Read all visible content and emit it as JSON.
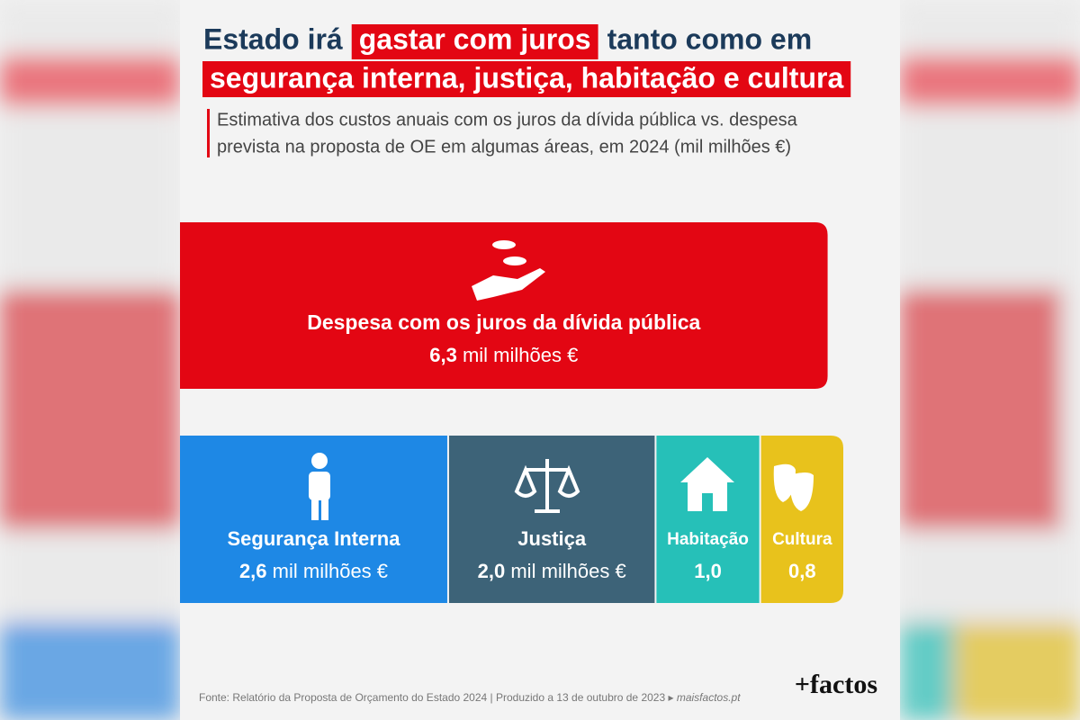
{
  "chart_data": {
    "type": "proportional-blocks",
    "title": [
      "Estado irá",
      "gastar com juros",
      "tanto como em",
      "segurança interna, justiça, habitação e cultura"
    ],
    "subtitle": [
      "Estimativa dos custos anuais com os juros da dívida pública vs. despesa",
      "prevista na proposta de OE em algumas áreas, em 2024 (mil milhões €)"
    ],
    "unit": "mil milhões €",
    "total": {
      "name": "Despesa com os juros da dívida pública",
      "value": 6.3,
      "value_label": "6,3",
      "color": "#e30613"
    },
    "series": [
      {
        "name": "Segurança Interna",
        "values": [
          2.6
        ],
        "value_labels": [
          "2,6"
        ],
        "color": "#1e88e5"
      },
      {
        "name": "Justiça",
        "values": [
          2.0
        ],
        "value_labels": [
          "2,0"
        ],
        "color": "#3d6378"
      },
      {
        "name": "Habitação",
        "values": [
          1.0
        ],
        "value_labels": [
          "1,0"
        ],
        "color": "#26c0b8"
      },
      {
        "name": "Cultura",
        "values": [
          0.8
        ],
        "value_labels": [
          "0,8"
        ],
        "color": "#e8c21c"
      }
    ]
  },
  "footer": {
    "source": "Fonte: Relatório da Proposta de Orçamento do Estado 2024 | Produzido a 13 de outubro de 2023 ▸",
    "site": "maisfactos.pt",
    "logo": "+factos"
  }
}
